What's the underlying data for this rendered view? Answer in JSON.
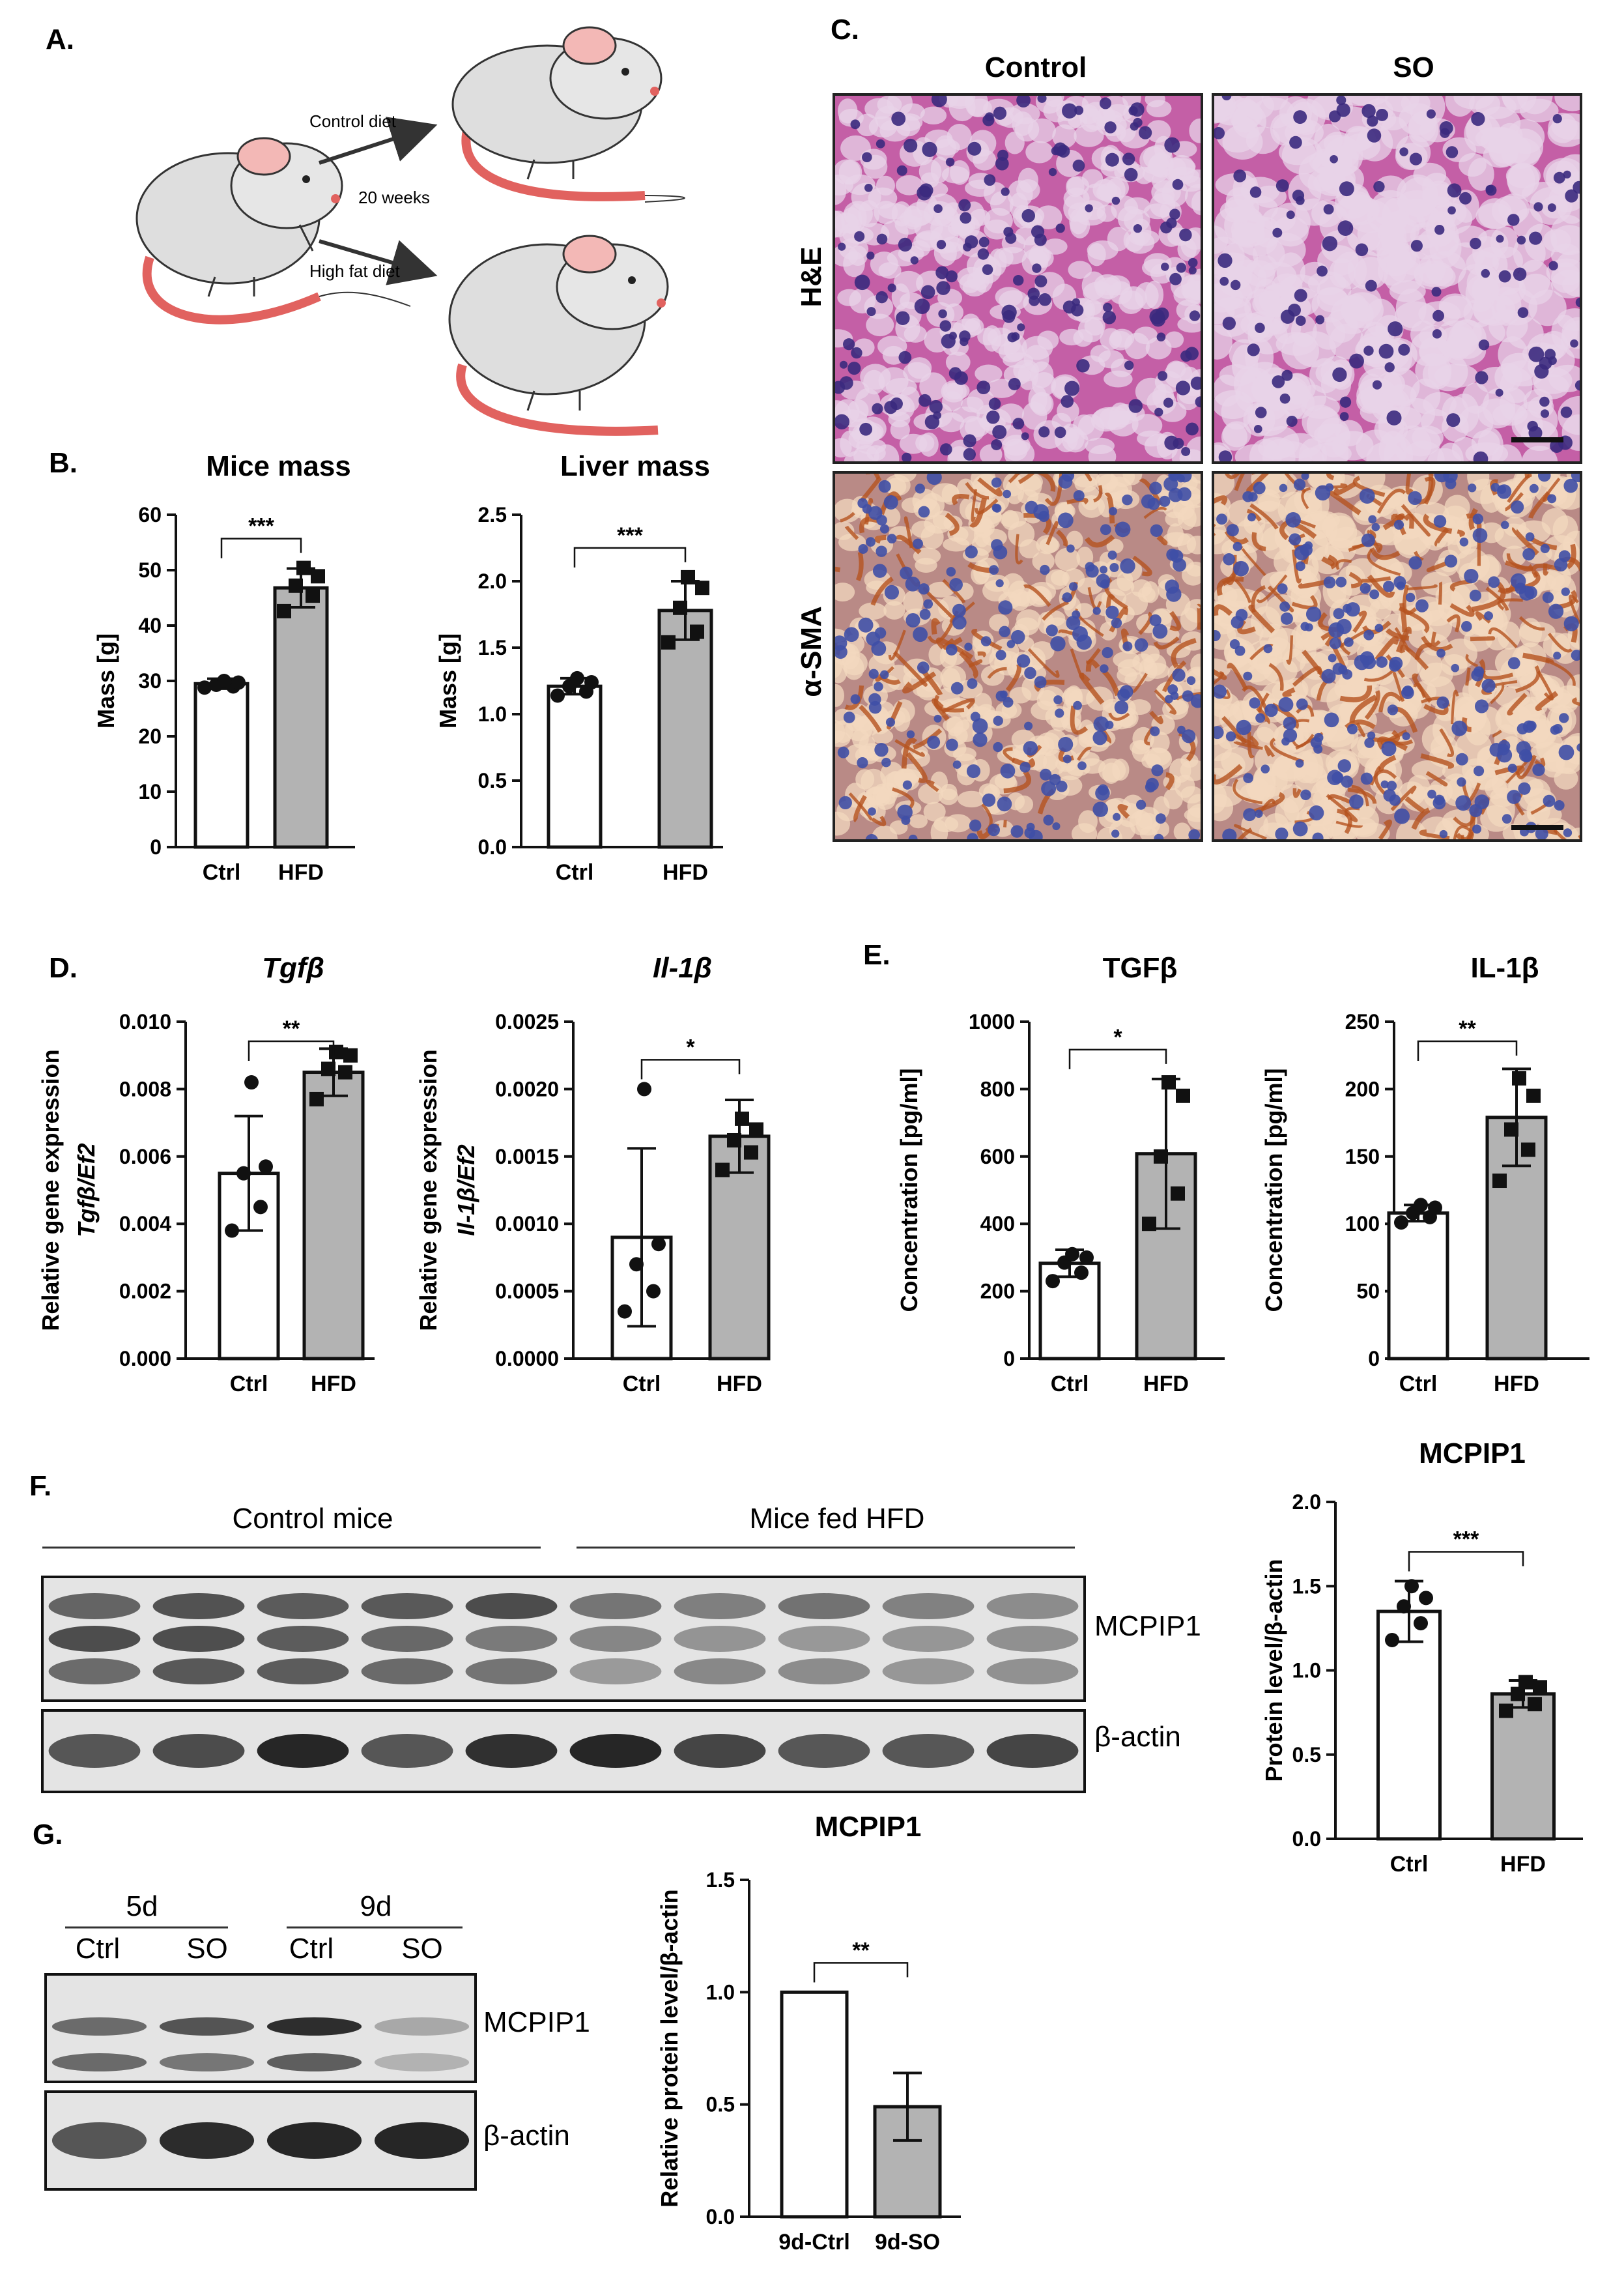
{
  "panels": {
    "A": "A.",
    "B": "B.",
    "C": "C.",
    "D": "D.",
    "E": "E.",
    "F": "F.",
    "G": "G."
  },
  "diet_schematic": {
    "control_diet": "Control diet",
    "duration": "20 weeks",
    "high_fat_diet": "High fat diet"
  },
  "histology": {
    "col_control": "Control",
    "col_so": "SO",
    "row_he": "H&E",
    "row_sma": "α-SMA",
    "colors": {
      "he_bg": "#c45fa6",
      "he_cell": "#e8d3e8",
      "he_nucleus": "#3b2a7e",
      "sma_bg": "#b98a86",
      "sma_cell": "#f3d8bf",
      "sma_nucleus": "#3f4fa6",
      "sma_stain": "#b5531f"
    }
  },
  "blot_F": {
    "group_control": "Control mice",
    "group_hfd": "Mice fed HFD",
    "band1": "MCPIP1",
    "band2": "β-actin"
  },
  "blot_G": {
    "group_5d": "5d",
    "group_9d": "9d",
    "lanes": [
      "Ctrl",
      "SO",
      "Ctrl",
      "SO"
    ],
    "band1": "MCPIP1",
    "band2": "β-actin"
  },
  "colors": {
    "ctrl_bar": "#ffffff",
    "hfd_bar": "#b3b3b3",
    "ink": "#111111"
  },
  "chart_data": [
    {
      "id": "mice_mass",
      "type": "bar",
      "title": "Mice mass",
      "ylabel": "Mass [g]",
      "categories": [
        "Ctrl",
        "HFD"
      ],
      "values": [
        29.5,
        46.8
      ],
      "errors": [
        0.9,
        3.5
      ],
      "points": [
        [
          28.8,
          29.0,
          29.3,
          29.7,
          30.0
        ],
        [
          42.6,
          45.4,
          47.2,
          48.9,
          50.4
        ]
      ],
      "ylim": [
        0,
        60
      ],
      "yticks": [
        "0",
        "10",
        "20",
        "30",
        "40",
        "50",
        "60"
      ],
      "sig": "***",
      "markers": [
        "circle",
        "square"
      ]
    },
    {
      "id": "liver_mass",
      "type": "bar",
      "title": "Liver mass",
      "ylabel": "Mass [g]",
      "categories": [
        "Ctrl",
        "HFD"
      ],
      "values": [
        1.21,
        1.78
      ],
      "errors": [
        0.06,
        0.22
      ],
      "points": [
        [
          1.14,
          1.17,
          1.21,
          1.24,
          1.27
        ],
        [
          1.54,
          1.62,
          1.8,
          1.95,
          2.03
        ]
      ],
      "ylim": [
        0,
        2.5
      ],
      "yticks": [
        "0.0",
        "0.5",
        "1.0",
        "1.5",
        "2.0",
        "2.5"
      ],
      "sig": "***",
      "markers": [
        "circle",
        "square"
      ]
    },
    {
      "id": "tgfb_gene",
      "type": "bar",
      "title": "Tgfβ",
      "title_italic": true,
      "ylabel": "Relative gene expression",
      "ylabel2": "Tgfβ/Ef2",
      "categories": [
        "Ctrl",
        "HFD"
      ],
      "values": [
        0.0055,
        0.0085
      ],
      "errors": [
        0.0017,
        0.0007
      ],
      "points": [
        [
          0.0038,
          0.0045,
          0.0055,
          0.0057,
          0.0082
        ],
        [
          0.0077,
          0.0085,
          0.0086,
          0.009,
          0.0091
        ]
      ],
      "ylim": [
        0,
        0.01
      ],
      "yticks": [
        "0.000",
        "0.002",
        "0.004",
        "0.006",
        "0.008",
        "0.010"
      ],
      "sig": "**",
      "markers": [
        "circle",
        "square"
      ]
    },
    {
      "id": "il1b_gene",
      "type": "bar",
      "title": "Il-1β",
      "title_italic": true,
      "ylabel": "Relative gene expression",
      "ylabel2": "Il-1β/Ef2",
      "categories": [
        "Ctrl",
        "HFD"
      ],
      "values": [
        0.0009,
        0.00165
      ],
      "errors": [
        0.00066,
        0.00027
      ],
      "points": [
        [
          0.00035,
          0.0005,
          0.0007,
          0.00085,
          0.002
        ],
        [
          0.0014,
          0.00153,
          0.00162,
          0.0017,
          0.00178
        ]
      ],
      "ylim": [
        0,
        0.0025
      ],
      "yticks": [
        "0.0000",
        "0.0005",
        "0.0010",
        "0.0015",
        "0.0020",
        "0.0025"
      ],
      "sig": "*",
      "markers": [
        "circle",
        "square"
      ]
    },
    {
      "id": "tgfb_conc",
      "type": "bar",
      "title": "TGFβ",
      "ylabel": "Concentration [pg/ml]",
      "categories": [
        "Ctrl",
        "HFD"
      ],
      "values": [
        283,
        608
      ],
      "errors": [
        40,
        222
      ],
      "points": [
        [
          230,
          255,
          285,
          300,
          310
        ],
        [
          400,
          490,
          600,
          780,
          820
        ]
      ],
      "ylim": [
        0,
        1000
      ],
      "yticks": [
        "0",
        "200",
        "400",
        "600",
        "800",
        "1000"
      ],
      "sig": "*",
      "markers": [
        "circle",
        "square"
      ]
    },
    {
      "id": "il1b_conc",
      "type": "bar",
      "title": "IL-1β",
      "ylabel": "Concentration [pg/ml]",
      "categories": [
        "Ctrl",
        "HFD"
      ],
      "values": [
        108,
        179
      ],
      "errors": [
        6,
        36
      ],
      "points": [
        [
          101,
          105,
          108,
          112,
          114
        ],
        [
          132,
          155,
          170,
          195,
          208
        ]
      ],
      "ylim": [
        0,
        250
      ],
      "yticks": [
        "0",
        "50",
        "100",
        "150",
        "200",
        "250"
      ],
      "sig": "**",
      "markers": [
        "circle",
        "square"
      ]
    },
    {
      "id": "mcpip1_f",
      "type": "bar",
      "title": "MCPIP1",
      "ylabel": "Protein level/β-actin",
      "categories": [
        "Ctrl",
        "HFD"
      ],
      "values": [
        1.35,
        0.86
      ],
      "errors": [
        0.18,
        0.08
      ],
      "points": [
        [
          1.18,
          1.28,
          1.38,
          1.43,
          1.5
        ],
        [
          0.76,
          0.8,
          0.86,
          0.9,
          0.93
        ]
      ],
      "ylim": [
        0,
        2.0
      ],
      "yticks": [
        "0.0",
        "0.5",
        "1.0",
        "1.5",
        "2.0"
      ],
      "sig": "***",
      "markers": [
        "circle",
        "square"
      ]
    },
    {
      "id": "mcpip1_g",
      "type": "bar",
      "title": "MCPIP1",
      "ylabel": "Relative protein level/β-actin",
      "categories": [
        "9d-Ctrl",
        "9d-SO"
      ],
      "values": [
        1.0,
        0.49
      ],
      "errors": [
        0,
        0.15
      ],
      "points": [
        [],
        []
      ],
      "ylim": [
        0,
        1.5
      ],
      "yticks": [
        "0.0",
        "0.5",
        "1.0",
        "1.5"
      ],
      "sig": "**",
      "markers": [
        "circle",
        "square"
      ]
    }
  ]
}
